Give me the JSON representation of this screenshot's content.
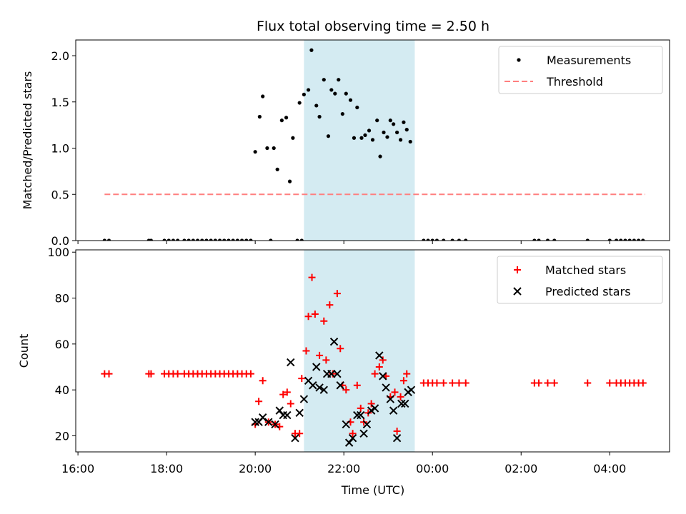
{
  "chart_data": {
    "title": "Flux total observing time = 2.50 h",
    "shared_x": {
      "xlabel": "Time (UTC)",
      "unit": "hours UTC, values past 24 are on the following day",
      "ticks": [
        16,
        18,
        20,
        22,
        24,
        26,
        28
      ],
      "tick_labels": [
        "16:00",
        "18:00",
        "20:00",
        "22:00",
        "00:00",
        "02:00",
        "04:00"
      ]
    },
    "highlight_span": {
      "x_start": 21.1,
      "x_end": 23.6,
      "color": "#add8e6"
    },
    "panels": [
      {
        "type": "scatter",
        "ylabel": "Matched/Predicted stars",
        "ylim": [
          0,
          2.17
        ],
        "yticks": [
          0.0,
          0.5,
          1.0,
          1.5,
          2.0
        ],
        "ytick_labels": [
          "0.0",
          "0.5",
          "1.0",
          "1.5",
          "2.0"
        ],
        "legend_position": "upper right",
        "series": [
          {
            "name": "Measurements",
            "marker": "dot",
            "color": "#000000",
            "points": [
              [
                16.6,
                0
              ],
              [
                16.7,
                0
              ],
              [
                17.6,
                0
              ],
              [
                17.65,
                0
              ],
              [
                17.95,
                0
              ],
              [
                18.05,
                0
              ],
              [
                18.15,
                0
              ],
              [
                18.25,
                0
              ],
              [
                18.4,
                0
              ],
              [
                18.5,
                0
              ],
              [
                18.6,
                0
              ],
              [
                18.7,
                0
              ],
              [
                18.8,
                0
              ],
              [
                18.9,
                0
              ],
              [
                19.0,
                0
              ],
              [
                19.1,
                0
              ],
              [
                19.2,
                0
              ],
              [
                19.3,
                0
              ],
              [
                19.4,
                0
              ],
              [
                19.5,
                0
              ],
              [
                19.6,
                0
              ],
              [
                19.7,
                0
              ],
              [
                19.8,
                0
              ],
              [
                19.9,
                0
              ],
              [
                20.35,
                0
              ],
              [
                20.95,
                0
              ],
              [
                21.05,
                0
              ],
              [
                20.0,
                0.96
              ],
              [
                20.1,
                1.34
              ],
              [
                20.17,
                1.56
              ],
              [
                20.27,
                1.0
              ],
              [
                20.42,
                1.0
              ],
              [
                20.5,
                0.77
              ],
              [
                20.6,
                1.3
              ],
              [
                20.7,
                1.33
              ],
              [
                20.78,
                0.64
              ],
              [
                20.85,
                1.11
              ],
              [
                21.0,
                1.49
              ],
              [
                21.1,
                1.58
              ],
              [
                21.2,
                1.63
              ],
              [
                21.27,
                2.06
              ],
              [
                21.38,
                1.46
              ],
              [
                21.45,
                1.34
              ],
              [
                21.55,
                1.74
              ],
              [
                21.65,
                1.13
              ],
              [
                21.72,
                1.63
              ],
              [
                21.8,
                1.59
              ],
              [
                21.88,
                1.74
              ],
              [
                21.97,
                1.37
              ],
              [
                22.05,
                1.59
              ],
              [
                22.15,
                1.52
              ],
              [
                22.23,
                1.11
              ],
              [
                22.3,
                1.44
              ],
              [
                22.4,
                1.11
              ],
              [
                22.48,
                1.14
              ],
              [
                22.57,
                1.19
              ],
              [
                22.65,
                1.09
              ],
              [
                22.75,
                1.3
              ],
              [
                22.82,
                0.91
              ],
              [
                22.9,
                1.17
              ],
              [
                22.98,
                1.12
              ],
              [
                23.05,
                1.3
              ],
              [
                23.12,
                1.26
              ],
              [
                23.2,
                1.17
              ],
              [
                23.28,
                1.09
              ],
              [
                23.35,
                1.28
              ],
              [
                23.42,
                1.2
              ],
              [
                23.5,
                1.07
              ],
              [
                23.8,
                0
              ],
              [
                23.9,
                0
              ],
              [
                24.0,
                0
              ],
              [
                24.1,
                0
              ],
              [
                24.25,
                0
              ],
              [
                24.45,
                0
              ],
              [
                24.6,
                0
              ],
              [
                24.75,
                0
              ],
              [
                26.3,
                0
              ],
              [
                26.4,
                0
              ],
              [
                26.6,
                0
              ],
              [
                26.75,
                0
              ],
              [
                27.5,
                0
              ],
              [
                28.0,
                0
              ],
              [
                28.15,
                0
              ],
              [
                28.25,
                0
              ],
              [
                28.35,
                0
              ],
              [
                28.45,
                0
              ],
              [
                28.55,
                0
              ],
              [
                28.65,
                0
              ],
              [
                28.75,
                0
              ]
            ]
          },
          {
            "name": "Threshold",
            "type": "line",
            "dashed": true,
            "color": "#ff7f7f",
            "points": [
              [
                16.6,
                0.5
              ],
              [
                28.8,
                0.5
              ]
            ]
          }
        ]
      },
      {
        "type": "scatter",
        "ylabel": "Count",
        "ylim": [
          13,
          101
        ],
        "yticks": [
          20,
          40,
          60,
          80,
          100
        ],
        "ytick_labels": [
          "20",
          "40",
          "60",
          "80",
          "100"
        ],
        "legend_position": "upper right",
        "series": [
          {
            "name": "Matched stars",
            "marker": "plus",
            "color": "#ff0000",
            "points": [
              [
                16.6,
                47
              ],
              [
                16.7,
                47
              ],
              [
                17.6,
                47
              ],
              [
                17.65,
                47
              ],
              [
                17.95,
                47
              ],
              [
                18.05,
                47
              ],
              [
                18.15,
                47
              ],
              [
                18.25,
                47
              ],
              [
                18.4,
                47
              ],
              [
                18.5,
                47
              ],
              [
                18.6,
                47
              ],
              [
                18.7,
                47
              ],
              [
                18.8,
                47
              ],
              [
                18.9,
                47
              ],
              [
                19.0,
                47
              ],
              [
                19.1,
                47
              ],
              [
                19.2,
                47
              ],
              [
                19.3,
                47
              ],
              [
                19.4,
                47
              ],
              [
                19.5,
                47
              ],
              [
                19.6,
                47
              ],
              [
                19.7,
                47
              ],
              [
                19.8,
                47
              ],
              [
                19.9,
                47
              ],
              [
                20.0,
                25
              ],
              [
                20.08,
                35
              ],
              [
                20.17,
                44
              ],
              [
                20.3,
                26
              ],
              [
                20.45,
                25
              ],
              [
                20.55,
                24
              ],
              [
                20.63,
                38
              ],
              [
                20.72,
                39
              ],
              [
                20.8,
                34
              ],
              [
                20.9,
                21
              ],
              [
                21.0,
                21
              ],
              [
                21.05,
                45
              ],
              [
                21.15,
                57
              ],
              [
                21.2,
                72
              ],
              [
                21.28,
                89
              ],
              [
                21.35,
                73
              ],
              [
                21.45,
                55
              ],
              [
                21.55,
                70
              ],
              [
                21.6,
                53
              ],
              [
                21.68,
                77
              ],
              [
                21.75,
                47
              ],
              [
                21.85,
                82
              ],
              [
                21.92,
                58
              ],
              [
                21.97,
                42
              ],
              [
                22.05,
                40
              ],
              [
                22.15,
                26
              ],
              [
                22.2,
                21
              ],
              [
                22.3,
                42
              ],
              [
                22.38,
                32
              ],
              [
                22.45,
                26
              ],
              [
                22.55,
                30
              ],
              [
                22.62,
                34
              ],
              [
                22.7,
                47
              ],
              [
                22.8,
                50
              ],
              [
                22.88,
                53
              ],
              [
                22.95,
                46
              ],
              [
                23.05,
                37
              ],
              [
                23.15,
                39
              ],
              [
                23.2,
                22
              ],
              [
                23.28,
                37
              ],
              [
                23.35,
                44
              ],
              [
                23.42,
                47
              ],
              [
                23.8,
                43
              ],
              [
                23.9,
                43
              ],
              [
                24.0,
                43
              ],
              [
                24.1,
                43
              ],
              [
                24.25,
                43
              ],
              [
                24.45,
                43
              ],
              [
                24.6,
                43
              ],
              [
                24.75,
                43
              ],
              [
                26.3,
                43
              ],
              [
                26.4,
                43
              ],
              [
                26.6,
                43
              ],
              [
                26.75,
                43
              ],
              [
                27.5,
                43
              ],
              [
                28.0,
                43
              ],
              [
                28.15,
                43
              ],
              [
                28.25,
                43
              ],
              [
                28.35,
                43
              ],
              [
                28.45,
                43
              ],
              [
                28.55,
                43
              ],
              [
                28.65,
                43
              ],
              [
                28.75,
                43
              ]
            ]
          },
          {
            "name": "Predicted stars",
            "marker": "x",
            "color": "#000000",
            "points": [
              [
                20.0,
                26
              ],
              [
                20.08,
                26
              ],
              [
                20.17,
                28
              ],
              [
                20.3,
                26
              ],
              [
                20.45,
                25
              ],
              [
                20.55,
                31
              ],
              [
                20.63,
                29
              ],
              [
                20.72,
                29
              ],
              [
                20.8,
                52
              ],
              [
                20.9,
                19
              ],
              [
                21.0,
                30
              ],
              [
                21.1,
                36
              ],
              [
                21.2,
                44
              ],
              [
                21.3,
                42
              ],
              [
                21.38,
                50
              ],
              [
                21.45,
                41
              ],
              [
                21.55,
                40
              ],
              [
                21.62,
                47
              ],
              [
                21.72,
                47
              ],
              [
                21.78,
                61
              ],
              [
                21.85,
                47
              ],
              [
                21.92,
                42
              ],
              [
                22.05,
                25
              ],
              [
                22.12,
                17
              ],
              [
                22.2,
                19
              ],
              [
                22.3,
                29
              ],
              [
                22.38,
                29
              ],
              [
                22.45,
                21
              ],
              [
                22.52,
                25
              ],
              [
                22.62,
                31
              ],
              [
                22.7,
                32
              ],
              [
                22.8,
                55
              ],
              [
                22.88,
                46
              ],
              [
                22.95,
                41
              ],
              [
                23.05,
                36
              ],
              [
                23.12,
                31
              ],
              [
                23.2,
                19
              ],
              [
                23.3,
                34
              ],
              [
                23.38,
                34
              ],
              [
                23.45,
                39
              ],
              [
                23.52,
                40
              ]
            ]
          }
        ]
      }
    ]
  }
}
